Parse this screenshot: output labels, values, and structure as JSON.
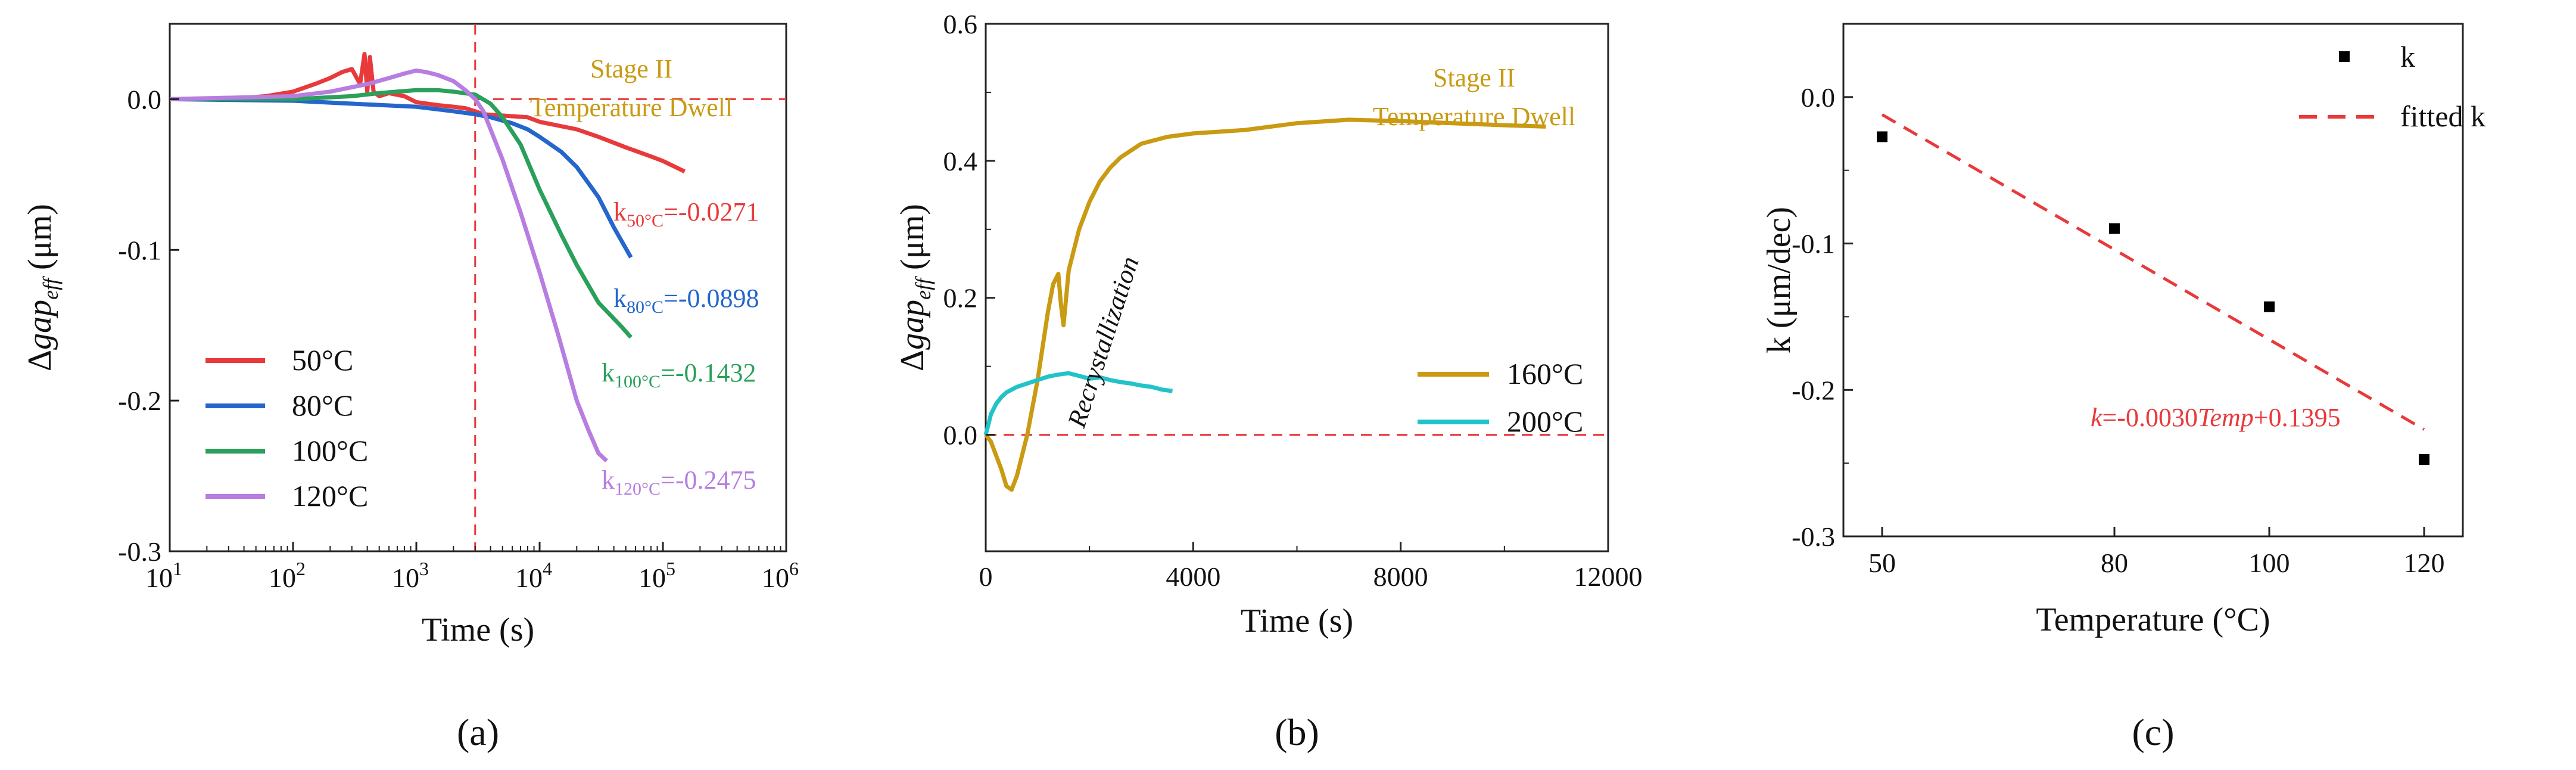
{
  "panel_labels": [
    "(a)",
    "(b)",
    "(c)"
  ],
  "colors": {
    "c50": "#e8393b",
    "c80": "#2466cc",
    "c100": "#2aa05a",
    "c120": "#b77de0",
    "c160": "#c99a12",
    "c200": "#22c3c8",
    "stage": "#c99a12",
    "ref": "#e8393b",
    "fit": "#e8393b"
  },
  "chart_data": [
    {
      "id": "a",
      "type": "line",
      "xscale": "log",
      "xlim": [
        10,
        1000000
      ],
      "ylim": [
        -0.3,
        0.05
      ],
      "xticks": [
        10,
        100,
        1000,
        10000,
        100000,
        1000000
      ],
      "xtick_labels": [
        {
          "base": "10",
          "exp": "1"
        },
        {
          "base": "10",
          "exp": "2"
        },
        {
          "base": "10",
          "exp": "3"
        },
        {
          "base": "10",
          "exp": "4"
        },
        {
          "base": "10",
          "exp": "5"
        },
        {
          "base": "10",
          "exp": "6"
        }
      ],
      "yticks": [
        0.0,
        -0.1,
        -0.2,
        -0.3
      ],
      "ytick_labels": [
        "0.0",
        "-0.1",
        "-0.2",
        "-0.3"
      ],
      "xlabel": "Time (s)",
      "ylabel_parts": [
        "Δ",
        "gap",
        "eff",
        " (μm)"
      ],
      "vline_x": 3000,
      "hline_y": 0,
      "hline_from": 3000,
      "stage_text": [
        "Stage II",
        "Temperature Dwell"
      ],
      "legend_position": "lower-left",
      "series": [
        {
          "name": "50°C",
          "color_key": "c50",
          "x": [
            10,
            30,
            60,
            100,
            150,
            200,
            250,
            300,
            350,
            380,
            400,
            420,
            450,
            500,
            600,
            800,
            1000,
            1500,
            2000,
            2500,
            3000,
            3500,
            8000,
            10000,
            20000,
            30000,
            50000,
            80000,
            100000,
            150000
          ],
          "y": [
            0,
            0,
            0.002,
            0.005,
            0.01,
            0.014,
            0.018,
            0.02,
            0.01,
            0.03,
            0.005,
            0.028,
            0.005,
            0.002,
            0.004,
            0.002,
            -0.002,
            -0.004,
            -0.005,
            -0.006,
            -0.008,
            -0.01,
            -0.012,
            -0.015,
            -0.02,
            -0.025,
            -0.032,
            -0.038,
            -0.041,
            -0.048
          ]
        },
        {
          "name": "80°C",
          "color_key": "c80",
          "x": [
            10,
            100,
            300,
            1000,
            2000,
            3000,
            4000,
            6000,
            8000,
            10000,
            15000,
            20000,
            30000,
            40000,
            55000
          ],
          "y": [
            0,
            -0.001,
            -0.003,
            -0.005,
            -0.008,
            -0.01,
            -0.012,
            -0.016,
            -0.02,
            -0.025,
            -0.035,
            -0.045,
            -0.065,
            -0.085,
            -0.105
          ]
        },
        {
          "name": "100°C",
          "color_key": "c100",
          "x": [
            10,
            100,
            300,
            500,
            700,
            1000,
            1500,
            2000,
            3000,
            4000,
            5000,
            7000,
            10000,
            15000,
            20000,
            30000,
            45000,
            55000
          ],
          "y": [
            0,
            0.0,
            0.002,
            0.004,
            0.005,
            0.006,
            0.006,
            0.005,
            0.003,
            -0.003,
            -0.012,
            -0.03,
            -0.06,
            -0.09,
            -0.11,
            -0.135,
            -0.15,
            -0.158
          ]
        },
        {
          "name": "120°C",
          "color_key": "c120",
          "x": [
            10,
            100,
            200,
            400,
            600,
            800,
            1000,
            1200,
            1500,
            2000,
            2500,
            3000,
            3500,
            4000,
            5000,
            7000,
            10000,
            14000,
            20000,
            25000,
            30000,
            35000
          ],
          "y": [
            0,
            0.002,
            0.005,
            0.01,
            0.014,
            0.017,
            0.019,
            0.018,
            0.016,
            0.012,
            0.006,
            0.0,
            -0.008,
            -0.02,
            -0.04,
            -0.075,
            -0.115,
            -0.155,
            -0.2,
            -0.22,
            -0.235,
            -0.24
          ]
        }
      ],
      "annotations": [
        {
          "base": "k",
          "sub": "50°C",
          "val": "=-0.0271",
          "color_key": "c50"
        },
        {
          "base": "k",
          "sub": "80°C",
          "val": "=-0.0898",
          "color_key": "c80"
        },
        {
          "base": "k",
          "sub": "100°C",
          "val": "=-0.1432",
          "color_key": "c100"
        },
        {
          "base": "k",
          "sub": "120°C",
          "val": "=-0.2475",
          "color_key": "c120"
        }
      ]
    },
    {
      "id": "b",
      "type": "line",
      "xlim": [
        0,
        12000
      ],
      "ylim": [
        -0.17,
        0.6
      ],
      "xticks": [
        0,
        4000,
        8000,
        12000
      ],
      "xtick_labels": [
        "0",
        "4000",
        "8000",
        "12000"
      ],
      "yticks": [
        0.0,
        0.2,
        0.4,
        0.6
      ],
      "ytick_labels": [
        "0.0",
        "0.2",
        "0.4",
        "0.6"
      ],
      "xlabel": "Time (s)",
      "ylabel_parts": [
        "Δ",
        "gap",
        "eff",
        " (μm)"
      ],
      "hline_y": 0,
      "stage_text": [
        "Stage II",
        "Temperature Dwell"
      ],
      "recrystallization_text": "Recrystallization",
      "legend_position": "right-middle",
      "series": [
        {
          "name": "160°C",
          "color_key": "c160",
          "x": [
            0,
            100,
            200,
            300,
            400,
            500,
            600,
            700,
            800,
            900,
            1000,
            1100,
            1200,
            1300,
            1400,
            1450,
            1500,
            1550,
            1600,
            1700,
            1800,
            2000,
            2200,
            2400,
            2600,
            2800,
            3000,
            3500,
            4000,
            5000,
            6000,
            7000,
            8000,
            9000,
            10000,
            10800
          ],
          "y": [
            0,
            -0.01,
            -0.03,
            -0.05,
            -0.075,
            -0.08,
            -0.06,
            -0.03,
            0.0,
            0.04,
            0.08,
            0.13,
            0.18,
            0.22,
            0.235,
            0.19,
            0.16,
            0.2,
            0.24,
            0.27,
            0.3,
            0.34,
            0.37,
            0.39,
            0.405,
            0.415,
            0.425,
            0.435,
            0.44,
            0.445,
            0.455,
            0.46,
            0.458,
            0.455,
            0.452,
            0.45
          ]
        },
        {
          "name": "200°C",
          "color_key": "c200",
          "x": [
            0,
            50,
            100,
            200,
            300,
            400,
            600,
            800,
            1000,
            1200,
            1400,
            1600,
            1800,
            2000,
            2200,
            2400,
            2600,
            2800,
            3000,
            3200,
            3400,
            3600
          ],
          "y": [
            0,
            0.015,
            0.03,
            0.045,
            0.055,
            0.062,
            0.07,
            0.075,
            0.08,
            0.085,
            0.088,
            0.09,
            0.086,
            0.082,
            0.084,
            0.08,
            0.077,
            0.075,
            0.072,
            0.07,
            0.066,
            0.064
          ]
        }
      ]
    },
    {
      "id": "c",
      "type": "scatter",
      "xlim": [
        45,
        125
      ],
      "ylim": [
        -0.3,
        0.05
      ],
      "xticks": [
        50,
        80,
        100,
        120
      ],
      "xtick_labels": [
        "50",
        "80",
        "100",
        "120"
      ],
      "yticks": [
        0.0,
        -0.1,
        -0.2,
        -0.3
      ],
      "ytick_labels": [
        "0.0",
        "-0.1",
        "-0.2",
        "-0.3"
      ],
      "xlabel": "Temperature (°C)",
      "ylabel": "k (μm/dec)",
      "legend_position": "top-right",
      "points": {
        "name": "k",
        "x": [
          50,
          80,
          100,
          120
        ],
        "y": [
          -0.0271,
          -0.0898,
          -0.1432,
          -0.2475
        ]
      },
      "fit": {
        "name": "fitted k",
        "slope": -0.003,
        "intercept": 0.1395,
        "x_from": 50,
        "x_to": 120,
        "label_parts": [
          "k",
          "=-0.0030",
          "Temp",
          "+0.1395"
        ]
      }
    }
  ]
}
